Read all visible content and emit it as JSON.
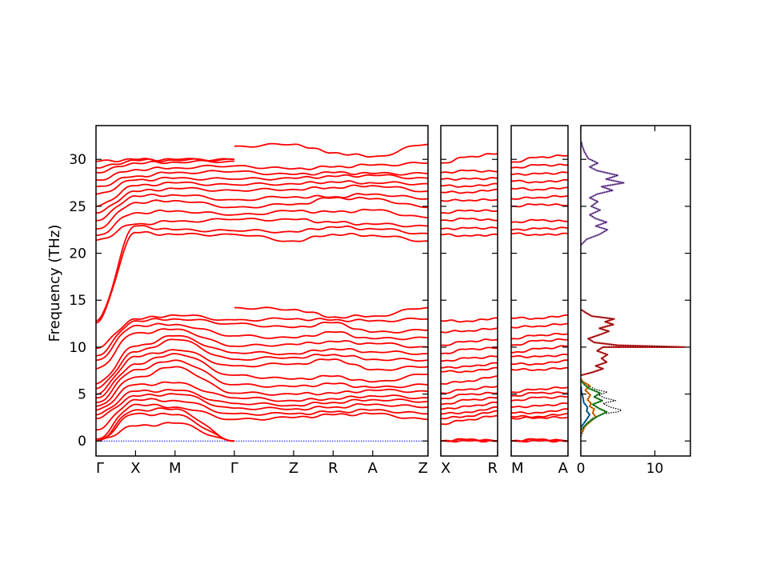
{
  "colors": {
    "bands": "#ff0000",
    "zero_line": "#0000ff",
    "dos_total": "#000000",
    "dos_c": "#1f77b4",
    "dos_o": "#ff7f0e",
    "dos_s": "#2ca02c",
    "dos_high": "#d62728",
    "dos_top": "#9467bd"
  },
  "chart_data": [
    {
      "type": "line",
      "panel": "bands-main",
      "ylabel": "Frequency (THz)",
      "ylim": [
        -1.6,
        33.6
      ],
      "yticks": [
        0,
        5,
        10,
        15,
        20,
        25,
        30
      ],
      "xticks": [
        {
          "label": "Γ",
          "x": 0.0
        },
        {
          "label": "X",
          "x": 0.5
        },
        {
          "label": "M",
          "x": 1.0
        },
        {
          "label": "Γ",
          "x": 1.75
        },
        {
          "label": "Z",
          "x": 2.5
        },
        {
          "label": "R",
          "x": 3.0
        },
        {
          "label": "A",
          "x": 3.5
        },
        {
          "label": "Z",
          "x": 4.2
        }
      ],
      "segments": [
        {
          "x": [
            0.0,
            0.5,
            1.0,
            1.75
          ],
          "start": [
            0.0,
            0.0,
            0.0,
            0.2,
            1.2,
            2.4,
            2.8,
            3.3,
            3.7,
            4.1,
            4.6,
            5.0,
            5.6,
            6.1,
            7.7,
            8.6,
            9.1,
            9.9,
            12.6,
            12.8,
            21.4,
            21.9,
            22.6,
            23.5,
            24.3,
            25.0,
            26.3,
            27.1,
            27.8,
            28.6,
            29.1,
            29.8
          ],
          "mid1": [
            1.6,
            2.9,
            3.3,
            3.9,
            4.4,
            4.8,
            5.3,
            6.0,
            6.8,
            7.6,
            8.2,
            9.0,
            9.5,
            10.1,
            11.5,
            12.3,
            12.8,
            13.0,
            22.2,
            22.9,
            23.1,
            24.3,
            25.4,
            26.1,
            26.6,
            27.2,
            27.8,
            28.2,
            28.9,
            29.6,
            29.9,
            30.0
          ],
          "mid2": [
            1.9,
            2.8,
            3.4,
            3.6,
            4.3,
            5.0,
            5.4,
            6.2,
            7.9,
            8.6,
            9.3,
            9.7,
            10.8,
            11.2,
            11.9,
            12.4,
            13.0,
            13.4,
            22.0,
            22.5,
            23.4,
            24.5,
            25.6,
            26.2,
            26.9,
            27.5,
            28.0,
            28.6,
            29.1,
            29.7,
            29.9,
            30.0
          ],
          "end": [
            0.0,
            0.0,
            0.0,
            2.3,
            2.9,
            3.5,
            4.0,
            4.6,
            5.1,
            6.0,
            7.0,
            8.0,
            8.7,
            9.4,
            10.1,
            11.2,
            12.5,
            12.9,
            22.0,
            22.4,
            23.6,
            24.1,
            24.9,
            25.7,
            26.7,
            27.3,
            27.9,
            28.7,
            29.3,
            29.8,
            30.0,
            30.0
          ]
        },
        {
          "x": [
            1.75,
            2.5,
            3.0,
            3.5,
            4.2
          ],
          "start": [
            2.3,
            2.9,
            3.5,
            4.0,
            4.6,
            5.1,
            6.0,
            7.0,
            8.0,
            8.7,
            9.4,
            10.1,
            11.2,
            12.5,
            12.9,
            14.2,
            22.0,
            22.4,
            23.6,
            24.1,
            24.9,
            25.7,
            26.7,
            27.3,
            27.9,
            28.7,
            29.3,
            31.4
          ],
          "mid1": [
            2.5,
            2.9,
            3.4,
            3.8,
            4.3,
            5.0,
            5.8,
            6.6,
            8.2,
            8.9,
            9.3,
            10.3,
            11.0,
            12.1,
            13.0,
            14.0,
            21.3,
            22.3,
            23.6,
            24.5,
            25.2,
            26.0,
            26.8,
            27.4,
            28.0,
            28.4,
            29.0,
            31.6
          ],
          "mid2": [
            2.8,
            3.1,
            3.6,
            4.1,
            4.5,
            5.1,
            6.1,
            6.9,
            8.7,
            9.2,
            9.8,
            10.6,
            11.6,
            12.6,
            12.9,
            13.2,
            22.0,
            22.8,
            23.3,
            24.4,
            25.9,
            26.0,
            27.0,
            27.6,
            28.2,
            28.6,
            29.2,
            30.7
          ],
          "mid3": [
            2.9,
            3.3,
            3.9,
            4.4,
            4.8,
            5.4,
            5.7,
            6.3,
            7.6,
            8.7,
            9.5,
            10.4,
            10.9,
            11.6,
            12.8,
            13.3,
            21.9,
            22.6,
            23.1,
            24.6,
            25.8,
            26.3,
            27.2,
            27.5,
            28.3,
            28.5,
            29.4,
            30.3
          ],
          "end": [
            2.3,
            2.9,
            3.6,
            4.2,
            4.6,
            5.3,
            6.0,
            7.1,
            7.9,
            8.6,
            9.3,
            10.0,
            11.0,
            11.8,
            13.0,
            14.2,
            21.3,
            22.1,
            22.9,
            23.8,
            24.9,
            25.8,
            26.6,
            27.4,
            28.0,
            28.5,
            29.6,
            31.6
          ]
        }
      ]
    },
    {
      "type": "line",
      "panel": "bands-xr",
      "xticks": [
        {
          "label": "X",
          "x": 0.0
        },
        {
          "label": "R",
          "x": 1.0
        }
      ],
      "ylim": [
        -1.6,
        33.6
      ],
      "start": [
        0.0,
        0.0,
        0.0,
        1.8,
        2.4,
        2.9,
        3.4,
        3.9,
        4.5,
        5.1,
        6.1,
        7.4,
        7.8,
        8.5,
        9.3,
        10.2,
        11.6,
        12.8,
        22.0,
        22.6,
        23.5,
        24.3,
        25.6,
        26.5,
        27.2,
        27.9,
        28.6,
        29.6
      ],
      "end": [
        0.0,
        0.0,
        0.0,
        2.7,
        3.2,
        3.6,
        4.1,
        4.6,
        5.1,
        5.8,
        6.9,
        7.8,
        8.3,
        9.0,
        9.9,
        10.8,
        12.0,
        13.1,
        22.0,
        22.7,
        23.5,
        24.5,
        25.7,
        26.8,
        27.4,
        28.0,
        28.7,
        30.6
      ]
    },
    {
      "type": "line",
      "panel": "bands-ma",
      "xticks": [
        {
          "label": "M",
          "x": 0.0
        },
        {
          "label": "A",
          "x": 1.0
        }
      ],
      "ylim": [
        -1.6,
        33.6
      ],
      "start": [
        0.0,
        0.0,
        0.0,
        2.4,
        2.6,
        3.0,
        3.6,
        4.3,
        4.8,
        5.2,
        7.6,
        8.2,
        9.0,
        9.4,
        10.2,
        10.9,
        12.1,
        13.1,
        22.1,
        22.5,
        23.3,
        25.0,
        25.8,
        26.9,
        27.7,
        28.4,
        29.1,
        29.7
      ],
      "end": [
        0.0,
        0.0,
        0.0,
        2.5,
        2.9,
        3.4,
        4.0,
        4.7,
        5.1,
        5.7,
        7.8,
        8.6,
        9.2,
        10.1,
        10.8,
        11.4,
        12.5,
        13.4,
        22.1,
        22.7,
        23.4,
        25.1,
        26.1,
        27.0,
        27.8,
        28.6,
        29.4,
        30.4
      ]
    },
    {
      "type": "area",
      "panel": "dos",
      "xlim": [
        0,
        14.8
      ],
      "xticks": [
        0,
        10
      ],
      "ylim": [
        -1.6,
        33.6
      ],
      "series": [
        {
          "points": [
            [
              0.05,
              0.5
            ],
            [
              0.4,
              1.2
            ],
            [
              0.8,
              1.8
            ],
            [
              1.5,
              2.4
            ],
            [
              3.0,
              2.9
            ],
            [
              5.0,
              3.1
            ],
            [
              5.5,
              3.3
            ],
            [
              4.0,
              3.6
            ],
            [
              3.0,
              4.0
            ],
            [
              4.7,
              4.3
            ],
            [
              3.2,
              4.6
            ],
            [
              2.4,
              4.9
            ],
            [
              3.6,
              5.2
            ],
            [
              2.0,
              5.5
            ],
            [
              1.0,
              5.9
            ],
            [
              0.3,
              6.3
            ],
            [
              0.05,
              6.6
            ]
          ],
          "color": "#000000",
          "style": "dotted"
        },
        {
          "points": [
            [
              0.05,
              1.5
            ],
            [
              0.8,
              2.3
            ],
            [
              1.2,
              2.8
            ],
            [
              0.8,
              3.2
            ],
            [
              0.9,
              3.6
            ],
            [
              0.4,
              4.1
            ],
            [
              0.3,
              4.6
            ],
            [
              0.1,
              5.2
            ],
            [
              0.05,
              5.8
            ]
          ],
          "color": "#1f77b4",
          "style": "solid"
        },
        {
          "points": [
            [
              0.05,
              0.8
            ],
            [
              0.6,
              1.6
            ],
            [
              1.5,
              2.2
            ],
            [
              2.0,
              2.6
            ],
            [
              1.6,
              3.0
            ],
            [
              1.8,
              3.4
            ],
            [
              1.2,
              3.7
            ],
            [
              1.4,
              4.0
            ],
            [
              0.9,
              4.4
            ],
            [
              1.3,
              4.9
            ],
            [
              0.6,
              5.4
            ],
            [
              1.2,
              5.9
            ],
            [
              0.3,
              6.3
            ],
            [
              0.05,
              6.6
            ]
          ],
          "color": "#ff7f0e",
          "style": "solid"
        },
        {
          "points": [
            [
              0.05,
              1.2
            ],
            [
              1.0,
              2.0
            ],
            [
              2.2,
              2.6
            ],
            [
              3.5,
              3.1
            ],
            [
              2.4,
              3.5
            ],
            [
              1.6,
              3.9
            ],
            [
              2.9,
              4.3
            ],
            [
              1.8,
              4.7
            ],
            [
              2.6,
              5.1
            ],
            [
              1.1,
              5.6
            ],
            [
              0.5,
              6.0
            ],
            [
              0.05,
              6.4
            ]
          ],
          "color": "#2ca02c",
          "style": "solid"
        },
        {
          "points": [
            [
              0.05,
              7.0
            ],
            [
              1.5,
              7.3
            ],
            [
              3.0,
              7.7
            ],
            [
              2.0,
              8.0
            ],
            [
              3.5,
              8.4
            ],
            [
              2.8,
              8.8
            ],
            [
              3.6,
              9.2
            ],
            [
              2.2,
              9.6
            ],
            [
              3.0,
              10.0
            ],
            [
              14.0,
              10.0
            ],
            [
              5.0,
              10.2
            ],
            [
              1.8,
              10.5
            ],
            [
              1.0,
              10.9
            ],
            [
              2.5,
              11.3
            ],
            [
              3.8,
              11.7
            ],
            [
              2.5,
              12.0
            ],
            [
              4.4,
              12.4
            ],
            [
              3.3,
              12.7
            ],
            [
              4.5,
              13.0
            ],
            [
              1.5,
              13.3
            ],
            [
              0.6,
              13.7
            ],
            [
              0.05,
              14.0
            ]
          ],
          "color": "#d62728",
          "style": "solid"
        },
        {
          "points": [
            [
              0.05,
              20.9
            ],
            [
              0.8,
              21.5
            ],
            [
              2.5,
              22.0
            ],
            [
              3.6,
              22.5
            ],
            [
              2.0,
              22.9
            ],
            [
              3.5,
              23.3
            ],
            [
              2.0,
              23.7
            ],
            [
              1.2,
              24.1
            ],
            [
              2.6,
              24.6
            ],
            [
              1.4,
              25.0
            ],
            [
              2.3,
              25.5
            ],
            [
              1.2,
              25.9
            ],
            [
              2.2,
              26.3
            ],
            [
              4.3,
              26.7
            ],
            [
              2.8,
              27.1
            ],
            [
              5.8,
              27.5
            ],
            [
              3.4,
              27.9
            ],
            [
              5.0,
              28.3
            ],
            [
              2.2,
              28.8
            ],
            [
              1.2,
              29.2
            ],
            [
              2.3,
              29.6
            ],
            [
              1.0,
              30.1
            ],
            [
              0.5,
              30.8
            ],
            [
              0.2,
              31.4
            ],
            [
              0.05,
              31.9
            ]
          ],
          "color": "#9467bd",
          "style": "solid"
        }
      ]
    }
  ]
}
